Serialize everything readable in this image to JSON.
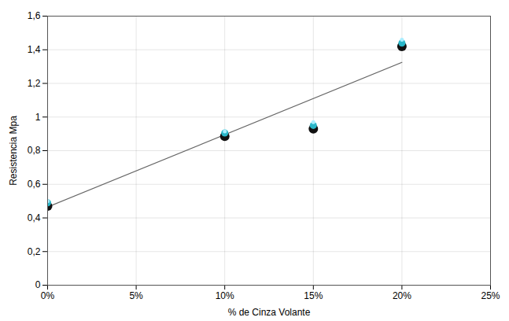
{
  "chart_data": {
    "type": "scatter",
    "x_label": "% de Cinza Volante",
    "y_label": "Resistencia Mpa",
    "x": [
      0,
      10,
      15,
      20
    ],
    "series": [
      {
        "type": "line",
        "color": "#666666",
        "x": [
          0,
          20
        ],
        "values": [
          0.465,
          1.325
        ]
      },
      {
        "type": "scatter",
        "color": "#111111",
        "marker": "circle",
        "values": [
          0.47,
          0.885,
          0.93,
          1.42
        ]
      },
      {
        "type": "scatter",
        "color": "#29b6c8",
        "marker": "circle",
        "values": [
          0.49,
          0.905,
          0.95,
          1.44
        ]
      },
      {
        "type": "scatter",
        "color": "#aaeeff",
        "marker": "circle",
        "values": [
          0.5,
          0.915,
          0.97,
          1.46
        ]
      }
    ],
    "xlim": [
      0,
      25
    ],
    "ylim": [
      0,
      1.6
    ],
    "xticks": [
      {
        "value": 0,
        "label": "0%"
      },
      {
        "value": 5,
        "label": "5%"
      },
      {
        "value": 10,
        "label": "10%"
      },
      {
        "value": 15,
        "label": "15%"
      },
      {
        "value": 20,
        "label": "20%"
      },
      {
        "value": 25,
        "label": "25%"
      }
    ],
    "yticks": [
      0,
      {
        "value": 0.2,
        "label": "0,2"
      },
      {
        "value": 0.4,
        "label": "0,4"
      },
      {
        "value": 0.6,
        "label": "0,6"
      },
      {
        "value": 0.8,
        "label": "0,8"
      },
      1,
      {
        "value": 1.2,
        "label": "1,2"
      },
      {
        "value": 1.4,
        "label": "1,4"
      },
      {
        "value": 1.6,
        "label": "1,6"
      }
    ],
    "grid": true
  }
}
